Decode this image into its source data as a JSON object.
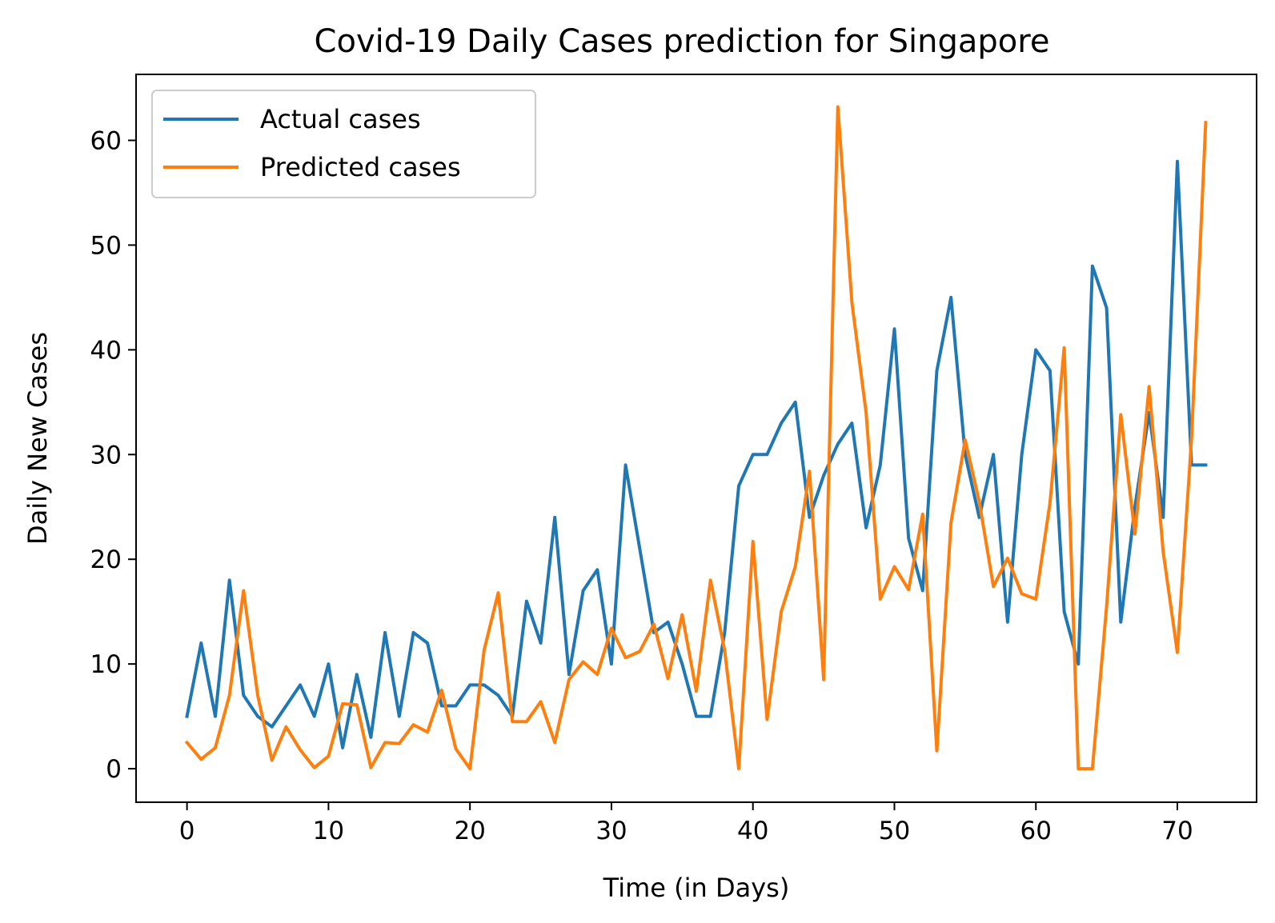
{
  "chart_data": {
    "type": "line",
    "title": "Covid-19 Daily Cases prediction for Singapore",
    "xlabel": "Time (in Days)",
    "ylabel": "Daily New Cases",
    "xlim": [
      -3.6,
      75.6
    ],
    "ylim": [
      -3.2,
      66.3
    ],
    "xticks": [
      0,
      10,
      20,
      30,
      40,
      50,
      60,
      70
    ],
    "yticks": [
      0,
      10,
      20,
      30,
      40,
      50,
      60
    ],
    "grid": false,
    "legend_position": "top-left",
    "x": [
      0,
      1,
      2,
      3,
      4,
      5,
      6,
      7,
      8,
      9,
      10,
      11,
      12,
      13,
      14,
      15,
      16,
      17,
      18,
      19,
      20,
      21,
      22,
      23,
      24,
      25,
      26,
      27,
      28,
      29,
      30,
      31,
      32,
      33,
      34,
      35,
      36,
      37,
      38,
      39,
      40,
      41,
      42,
      43,
      44,
      45,
      46,
      47,
      48,
      49,
      50,
      51,
      52,
      53,
      54,
      55,
      56,
      57,
      58,
      59,
      60,
      61,
      62,
      63,
      64,
      65,
      66,
      67,
      68,
      69,
      70,
      71,
      72
    ],
    "series": [
      {
        "name": "Actual cases",
        "color": "#1f77b4",
        "values": [
          5,
          12,
          5,
          18,
          7,
          5,
          4,
          6,
          8,
          5,
          10,
          2,
          9,
          3,
          13,
          5,
          13,
          12,
          6,
          6,
          8,
          8,
          7,
          5,
          16,
          12,
          24,
          9,
          17,
          19,
          10,
          29,
          21,
          13,
          14,
          10,
          5,
          5,
          13,
          27,
          30,
          30,
          33,
          35,
          24,
          28,
          31,
          33,
          23,
          29,
          42,
          22,
          17,
          38,
          45,
          30,
          24,
          30,
          14,
          30,
          40,
          38,
          15,
          10,
          48,
          44,
          14,
          25,
          34,
          24,
          58,
          29,
          29
        ]
      },
      {
        "name": "Predicted cases",
        "color": "#ff7f0e",
        "values": [
          2.5,
          0.9,
          2,
          7,
          17,
          7,
          0.8,
          4,
          1.8,
          0.1,
          1.2,
          6.2,
          6.1,
          0.1,
          2.5,
          2.4,
          4.2,
          3.5,
          7.5,
          1.9,
          0,
          11.3,
          16.8,
          4.5,
          4.5,
          6.4,
          2.5,
          8.5,
          10.2,
          9,
          13.4,
          10.6,
          11.2,
          13.8,
          8.6,
          14.7,
          7.4,
          18,
          11.3,
          0,
          21.7,
          4.7,
          15,
          19.3,
          28.4,
          8.5,
          63.2,
          44.5,
          34,
          16.2,
          19.3,
          17.1,
          24.3,
          1.7,
          23.5,
          31.4,
          25.5,
          17.4,
          20.1,
          16.7,
          16.2,
          25.4,
          40.2,
          0,
          0,
          15.5,
          33.8,
          22.4,
          36.5,
          20.7,
          11.1,
          31.5,
          61.7
        ]
      }
    ]
  }
}
